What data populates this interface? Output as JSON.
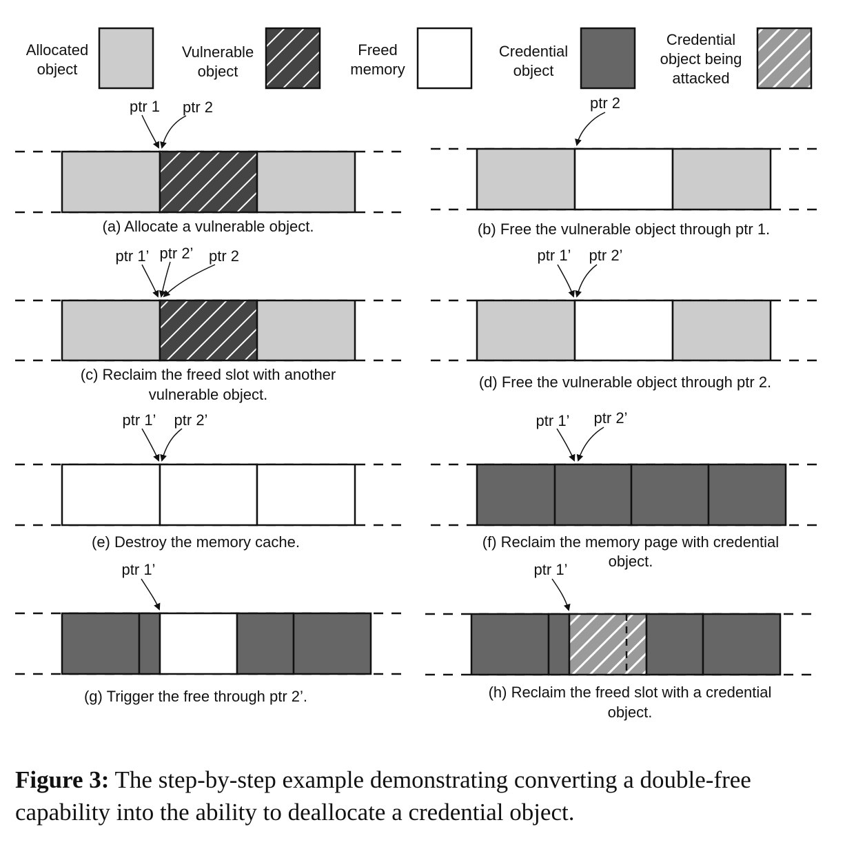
{
  "legend": {
    "allocated": [
      "Allocated",
      "object"
    ],
    "vulnerable": [
      "Vulnerable",
      "object"
    ],
    "freed": [
      "Freed",
      "memory"
    ],
    "credential": [
      "Credential",
      "object"
    ],
    "attacked": [
      "Credential",
      "object being",
      "attacked"
    ]
  },
  "panels": {
    "a": {
      "ptr_left": "ptr 1",
      "ptr_right": "ptr 2",
      "caption": [
        "(a) Allocate a vulnerable object."
      ]
    },
    "b": {
      "ptr_right": "ptr 2",
      "caption": [
        "(b) Free the vulnerable object through ptr 1."
      ]
    },
    "c": {
      "ptr_left": "ptr 1’",
      "ptr_mid": "ptr 2’",
      "ptr_right": "ptr 2",
      "caption": [
        "(c) Reclaim the freed slot with another",
        "vulnerable object."
      ]
    },
    "d": {
      "ptr_left": "ptr 1’",
      "ptr_right": "ptr 2’",
      "caption": [
        "(d) Free the vulnerable object through ptr 2."
      ]
    },
    "e": {
      "ptr_left": "ptr 1’",
      "ptr_right": "ptr 2’",
      "caption": [
        "(e) Destroy the memory cache."
      ]
    },
    "f": {
      "ptr_left": "ptr 1’",
      "ptr_right": "ptr 2’",
      "caption": [
        "(f) Reclaim the memory page with credential",
        "object."
      ]
    },
    "g": {
      "ptr_left": "ptr 1’",
      "caption": [
        "(g) Trigger the free through ptr 2’."
      ]
    },
    "h": {
      "ptr_left": "ptr 1’",
      "caption": [
        "(h) Reclaim the freed slot with a credential",
        "object."
      ]
    }
  },
  "figure_caption": {
    "label": "Figure 3:",
    "text": " The step-by-step example demonstrating converting a double-free capability into the ability to deallocate a credential object."
  },
  "colors": {
    "allocated": "#cccccc",
    "vulnerable": "#444444",
    "freed": "#ffffff",
    "credential": "#666666",
    "attacked": "#c9c9c9",
    "stroke": "#111111"
  }
}
